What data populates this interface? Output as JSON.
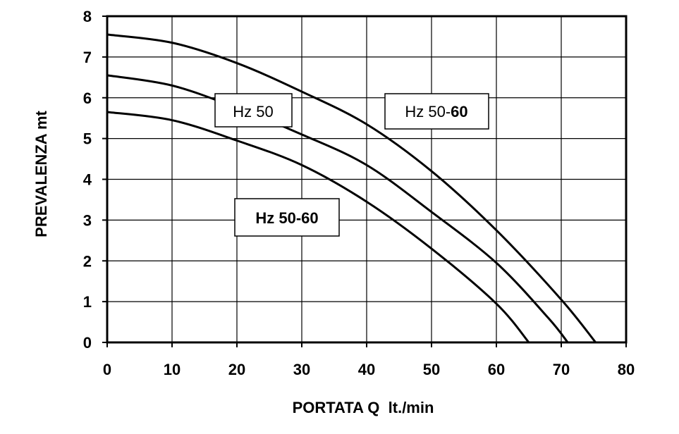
{
  "chart_data": {
    "type": "line",
    "xlabel": "PORTATA Q  lt./min",
    "ylabel": "PREVALENZA mt",
    "xlim": [
      0,
      80
    ],
    "ylim": [
      0,
      8
    ],
    "x_ticks": [
      "0",
      "10",
      "20",
      "30",
      "40",
      "50",
      "60",
      "70",
      "80"
    ],
    "y_ticks": [
      "0",
      "1",
      "2",
      "3",
      "4",
      "5",
      "6",
      "7",
      "8"
    ],
    "grid": true,
    "series": [
      {
        "points": [
          [
            0,
            7.55
          ],
          [
            10,
            7.35
          ],
          [
            20,
            6.85
          ],
          [
            30,
            6.15
          ],
          [
            40,
            5.35
          ],
          [
            50,
            4.2
          ],
          [
            60,
            2.75
          ],
          [
            70,
            1.05
          ],
          [
            75.3,
            0
          ]
        ]
      },
      {
        "points": [
          [
            0,
            6.55
          ],
          [
            10,
            6.3
          ],
          [
            20,
            5.75
          ],
          [
            30,
            5.1
          ],
          [
            40,
            4.35
          ],
          [
            50,
            3.2
          ],
          [
            60,
            1.95
          ],
          [
            68,
            0.6
          ],
          [
            71,
            0
          ]
        ]
      },
      {
        "points": [
          [
            0,
            5.65
          ],
          [
            10,
            5.45
          ],
          [
            20,
            4.95
          ],
          [
            30,
            4.35
          ],
          [
            40,
            3.45
          ],
          [
            50,
            2.3
          ],
          [
            60,
            0.95
          ],
          [
            65,
            0
          ]
        ]
      }
    ],
    "annotations": [
      {
        "parts": [
          {
            "text": "Hz 50",
            "bold": false
          }
        ]
      },
      {
        "parts": [
          {
            "text": "Hz 50-",
            "bold": false
          },
          {
            "text": "60",
            "bold": true
          }
        ]
      },
      {
        "parts": [
          {
            "text": "Hz ",
            "bold": true
          },
          {
            "text": "50",
            "bold": true
          },
          {
            "text": "-60",
            "bold": true
          }
        ]
      }
    ]
  }
}
